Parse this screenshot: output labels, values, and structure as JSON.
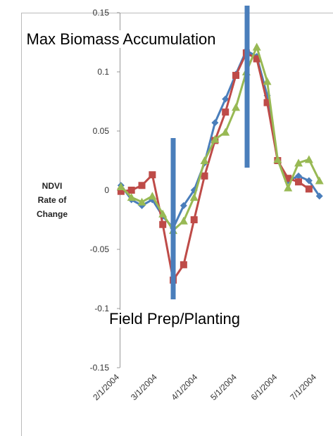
{
  "chart_data": {
    "type": "line",
    "ylabel": "NDVI Rate of Change",
    "x": [
      "2/2/2004",
      "2/10/2004",
      "2/18/2004",
      "2/26/2004",
      "3/5/2004",
      "3/13/2004",
      "3/21/2004",
      "3/29/2004",
      "4/6/2004",
      "4/14/2004",
      "4/22/2004",
      "4/30/2004",
      "5/8/2004",
      "5/16/2004",
      "5/24/2004",
      "6/1/2004",
      "6/9/2004",
      "6/17/2004",
      "6/25/2004",
      "7/3/2004"
    ],
    "series": [
      {
        "color": "#4a7ebb",
        "marker": "diamond",
        "values": [
          0.004,
          -0.008,
          -0.013,
          -0.008,
          -0.022,
          -0.032,
          -0.013,
          0.0,
          0.023,
          0.057,
          0.077,
          0.098,
          0.118,
          0.113,
          0.08,
          0.025,
          0.008,
          0.012,
          0.008,
          -0.005
        ]
      },
      {
        "color": "#be4b48",
        "marker": "square",
        "values": [
          -0.001,
          0.0,
          0.004,
          0.013,
          -0.029,
          -0.076,
          -0.063,
          -0.025,
          0.012,
          0.042,
          0.066,
          0.097,
          0.116,
          0.111,
          0.074,
          0.025,
          0.01,
          0.007,
          0.001,
          null
        ]
      },
      {
        "color": "#98b954",
        "marker": "triangle",
        "values": [
          0.003,
          -0.006,
          -0.01,
          -0.005,
          -0.02,
          -0.034,
          -0.026,
          -0.006,
          0.025,
          0.043,
          0.049,
          0.07,
          0.1,
          0.121,
          0.092,
          0.026,
          0.002,
          0.023,
          0.026,
          0.008
        ]
      }
    ],
    "xlim": [
      "2/1/2004",
      "7/1/2004"
    ],
    "xticks": [
      "2/1/2004",
      "3/1/2004",
      "4/1/2004",
      "5/1/2004",
      "6/1/2004",
      "7/1/2004"
    ],
    "ylim": [
      -0.15,
      0.15
    ],
    "yticks": [
      -0.15,
      -0.1,
      -0.05,
      0,
      0.05,
      0.1,
      0.15
    ],
    "annotations": [
      {
        "text": "Max Biomass Accumulation",
        "color": "#4a7ebb"
      },
      {
        "text": "Field Prep/Planting",
        "color": "#4a7ebb"
      }
    ]
  }
}
